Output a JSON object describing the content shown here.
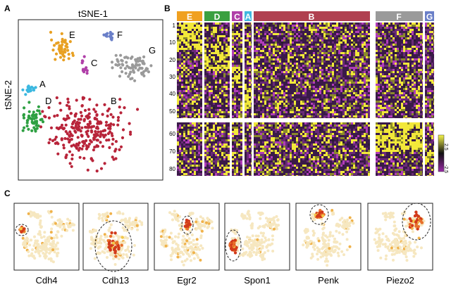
{
  "panel_a": {
    "letter": "A",
    "x_axis_label": "tSNE-1",
    "y_axis_label": "tSNE-2",
    "clusters": [
      {
        "id": "A",
        "color": "#3cb8e0"
      },
      {
        "id": "B",
        "color": "#b8243a"
      },
      {
        "id": "C",
        "color": "#b03fa8"
      },
      {
        "id": "D",
        "color": "#2ea042"
      },
      {
        "id": "E",
        "color": "#e8a022"
      },
      {
        "id": "F",
        "color": "#6a7fc8"
      },
      {
        "id": "G",
        "color": "#9a9a9a"
      }
    ]
  },
  "panel_b": {
    "letter": "B",
    "groups": [
      {
        "id": "E",
        "color": "#f0a020"
      },
      {
        "id": "D",
        "color": "#3aa040"
      },
      {
        "id": "C",
        "color": "#b03fa8"
      },
      {
        "id": "A",
        "color": "#40b8e0"
      },
      {
        "id": "B",
        "color": "#b04050"
      },
      {
        "id": "F",
        "color": "#9a9a9a"
      },
      {
        "id": "G",
        "color": "#6a7fc8"
      }
    ],
    "row_ticks": [
      "1",
      "10",
      "20",
      "30",
      "40",
      "50",
      "60",
      "70",
      "80"
    ],
    "colorbar_max": "2.5",
    "colorbar_min": "-2.5"
  },
  "panel_c": {
    "letter": "C",
    "genes": [
      "Cdh4",
      "Cdh13",
      "Egr2",
      "Spon1",
      "Penk",
      "Piezo2"
    ]
  }
}
